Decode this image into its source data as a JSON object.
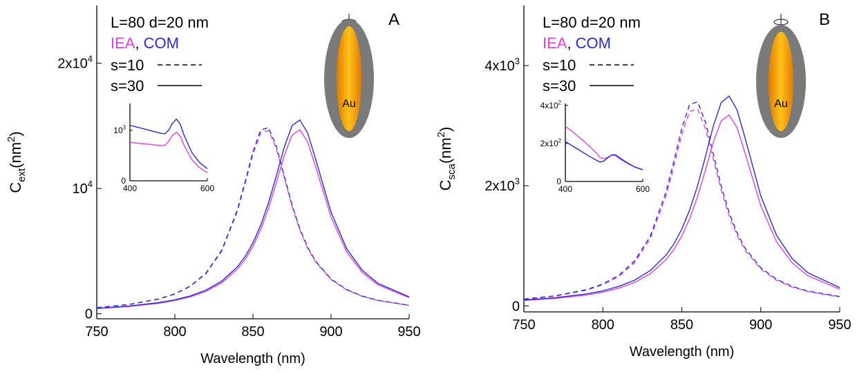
{
  "chart_data": [
    {
      "type": "line",
      "panel_label": "A",
      "particle_label": "Au",
      "legend_header": "L=80 d=20 nm",
      "methods": [
        {
          "name": "IEA",
          "color": "#e040e0"
        },
        {
          "name": "COM",
          "color": "#2a2ad0"
        }
      ],
      "legend_separator": ",",
      "sizes": [
        {
          "name": "s=10",
          "dash": "dashed"
        },
        {
          "name": "s=30",
          "dash": "solid"
        }
      ],
      "xlabel": "Wavelength (nm)",
      "ylabel": {
        "text": "C",
        "sub": "ext",
        "unit": "(nm",
        "sup": "2",
        "close": ")"
      },
      "xlim": [
        750,
        950
      ],
      "xticks": [
        750,
        800,
        850,
        900,
        950
      ],
      "ylim": [
        -400,
        24600
      ],
      "yticks": [
        0,
        {
          "value": 10000,
          "label": "10",
          "sup": "4"
        },
        {
          "value": 20000,
          "label": "2x10",
          "sup": "4"
        }
      ],
      "x": [
        750,
        770,
        790,
        800,
        810,
        820,
        830,
        840,
        845,
        850,
        855,
        860,
        865,
        870,
        875,
        880,
        885,
        890,
        900,
        910,
        920,
        930,
        950
      ],
      "series": [
        {
          "method": "IEA",
          "size": "s=10",
          "color": "#e040e0",
          "dash": "dashed",
          "values": [
            490,
            726,
            1176,
            1570,
            2186,
            3205,
            4992,
            8163,
            10387,
            12737,
            14450,
            14628,
            13163,
            10864,
            8577,
            6685,
            5234,
            4150,
            2731,
            1904,
            1393,
            1058,
            667
          ]
        },
        {
          "method": "COM",
          "size": "s=10",
          "color": "#2a2ad0",
          "dash": "dashed",
          "values": [
            497,
            737,
            1194,
            1594,
            2219,
            3254,
            5068,
            8287,
            10545,
            12931,
            14670,
            14851,
            13363,
            11029,
            8708,
            6787,
            5314,
            4213,
            2773,
            1933,
            1414,
            1074,
            677
          ]
        },
        {
          "method": "IEA",
          "size": "s=30",
          "color": "#e040e0",
          "dash": "solid",
          "values": [
            416,
            577,
            847,
            1060,
            1359,
            1798,
            2471,
            3557,
            4343,
            5380,
            6724,
            8433,
            10480,
            12618,
            14255,
            14695,
            13709,
            11780,
            7705,
            4931,
            3292,
            2310,
            1289
          ]
        },
        {
          "method": "COM",
          "size": "s=30",
          "color": "#2a2ad0",
          "dash": "solid",
          "values": [
            438,
            607,
            892,
            1116,
            1430,
            1893,
            2601,
            3744,
            4572,
            5663,
            7078,
            8877,
            11032,
            13282,
            15005,
            15468,
            14431,
            12400,
            8111,
            5191,
            3465,
            2432,
            1357
          ]
        }
      ]
    },
    {
      "type": "line",
      "xlim": [
        400,
        600
      ],
      "xticks": [
        400,
        600
      ],
      "ylim": [
        0,
        1530
      ],
      "yticks": [
        0,
        {
          "value": 1000,
          "label": "10",
          "sup": "3"
        }
      ],
      "x": [
        400,
        420,
        440,
        460,
        480,
        490,
        500,
        510,
        520,
        530,
        540,
        560,
        580,
        600
      ],
      "series": [
        {
          "color": "#e040e0",
          "values": [
            760,
            745,
            730,
            715,
            700,
            700,
            780,
            900,
            960,
            880,
            700,
            420,
            260,
            160
          ]
        },
        {
          "color": "#2a2ad0",
          "values": [
            1100,
            1060,
            1020,
            980,
            940,
            930,
            1000,
            1140,
            1220,
            1120,
            900,
            560,
            360,
            240
          ]
        }
      ]
    },
    {
      "type": "line",
      "panel_label": "B",
      "particle_label": "Au",
      "legend_header": "L=80 d=20 nm",
      "methods": [
        {
          "name": "IEA",
          "color": "#e040e0"
        },
        {
          "name": "COM",
          "color": "#2a2ad0"
        }
      ],
      "legend_separator": ",",
      "sizes": [
        {
          "name": "s=10",
          "dash": "dashed"
        },
        {
          "name": "s=30",
          "dash": "solid"
        }
      ],
      "xlabel": "Wavelength (nm)",
      "ylabel": {
        "text": "C",
        "sub": "sca",
        "unit": "(nm",
        "sup": "2",
        "close": ")"
      },
      "xlim": [
        750,
        950
      ],
      "xticks": [
        750,
        800,
        850,
        900,
        950
      ],
      "ylim": [
        -100,
        5000
      ],
      "yticks": [
        0,
        {
          "value": 2000,
          "label": "2x10",
          "sup": "3"
        },
        {
          "value": 4000,
          "label": "4x10",
          "sup": "3"
        }
      ],
      "x": [
        750,
        770,
        790,
        800,
        810,
        820,
        830,
        840,
        845,
        850,
        855,
        860,
        865,
        870,
        875,
        880,
        885,
        890,
        900,
        910,
        920,
        930,
        950
      ],
      "series": [
        {
          "method": "IEA",
          "size": "s=10",
          "color": "#e040e0",
          "dash": "dashed",
          "values": [
            110,
            163,
            263,
            352,
            489,
            718,
            1118,
            1829,
            2328,
            2854,
            3238,
            3277,
            2949,
            2434,
            1922,
            1498,
            1172,
            929,
            612,
            427,
            312,
            237,
            150
          ]
        },
        {
          "method": "COM",
          "size": "s=10",
          "color": "#2a2ad0",
          "dash": "dashed",
          "values": [
            114,
            169,
            273,
            365,
            507,
            744,
            1159,
            1895,
            2412,
            2957,
            3355,
            3396,
            3056,
            2522,
            1992,
            1552,
            1215,
            963,
            634,
            442,
            323,
            246,
            155
          ]
        },
        {
          "method": "IEA",
          "size": "s=30",
          "color": "#e040e0",
          "dash": "solid",
          "values": [
            90,
            125,
            183,
            229,
            294,
            389,
            534,
            769,
            939,
            1164,
            1454,
            1824,
            2267,
            2729,
            3083,
            3179,
            2965,
            2548,
            1666,
            1067,
            712,
            500,
            278
          ]
        },
        {
          "method": "COM",
          "size": "s=30",
          "color": "#2a2ad0",
          "dash": "solid",
          "values": [
            99,
            137,
            201,
            252,
            323,
            427,
            587,
            845,
            1032,
            1279,
            1598,
            2004,
            2491,
            2999,
            3388,
            3493,
            3258,
            2800,
            1831,
            1172,
            782,
            549,
            306
          ]
        }
      ]
    },
    {
      "type": "line",
      "xlim": [
        400,
        600
      ],
      "xticks": [
        400,
        600
      ],
      "ylim": [
        0,
        410
      ],
      "yticks": [
        0,
        {
          "value": 200,
          "label": "2x10",
          "sup": "2"
        },
        {
          "value": 400,
          "label": "4x10",
          "sup": "2"
        }
      ],
      "x": [
        400,
        420,
        440,
        460,
        480,
        490,
        500,
        510,
        520,
        530,
        540,
        560,
        580,
        600
      ],
      "series": [
        {
          "color": "#e040e0",
          "values": [
            290,
            260,
            225,
            190,
            150,
            125,
            120,
            128,
            138,
            136,
            120,
            95,
            75,
            62
          ]
        },
        {
          "color": "#2a2ad0",
          "values": [
            210,
            185,
            160,
            135,
            112,
            102,
            108,
            125,
            140,
            140,
            125,
            98,
            76,
            62
          ]
        }
      ]
    }
  ]
}
